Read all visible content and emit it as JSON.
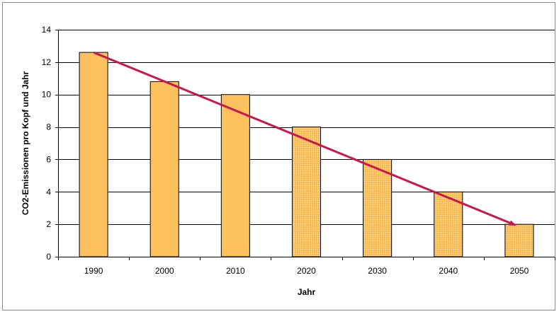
{
  "chart_data": {
    "type": "bar",
    "title": "",
    "xlabel": "Jahr",
    "ylabel": "CO2-Emissionen pro Kopf und Jahr",
    "categories": [
      "1990",
      "2000",
      "2010",
      "2020",
      "2030",
      "2040",
      "2050"
    ],
    "series": [
      {
        "values": [
          12.6,
          10.8,
          10,
          8,
          6,
          4,
          2
        ]
      }
    ],
    "bar_styles": [
      "solid",
      "solid",
      "solid",
      "dotted",
      "dotted",
      "dotted",
      "dotted"
    ],
    "ylim": [
      0,
      14
    ],
    "yticks": [
      0,
      2,
      4,
      6,
      8,
      10,
      12,
      14
    ],
    "grid": true,
    "legend": "none",
    "trend_arrow": {
      "from": {
        "category": "1990",
        "value": 12.6
      },
      "to": {
        "category": "2050",
        "value": 2
      }
    },
    "colors": {
      "bar_fill": "#FDC15E",
      "bar_border": "#000000",
      "grid": "#000000",
      "arrow": "#C8174E",
      "frame": "#8a8a8a"
    }
  }
}
